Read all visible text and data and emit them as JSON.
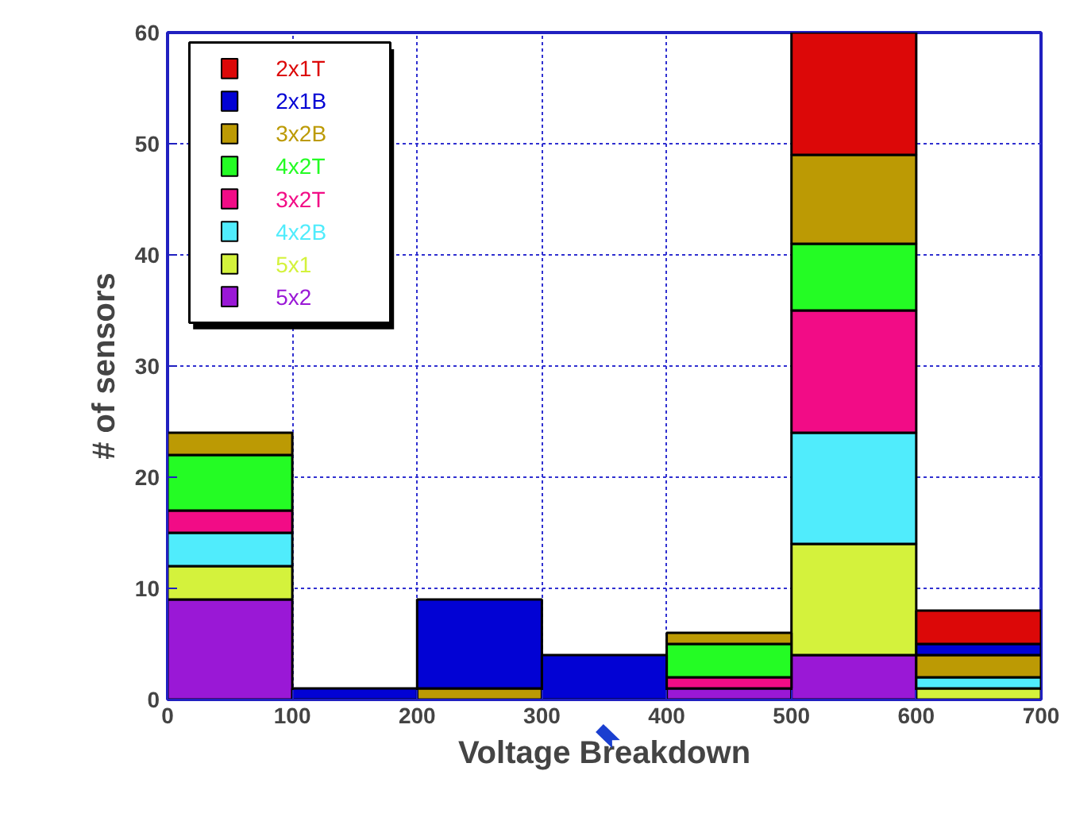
{
  "chart_data": {
    "type": "bar",
    "stacked": true,
    "xlabel": "Voltage Breakdown",
    "ylabel": "# of sensors",
    "x": [
      50,
      150,
      250,
      350,
      450,
      550,
      650
    ],
    "xlim": [
      0,
      700
    ],
    "xticks": [
      0,
      100,
      200,
      300,
      400,
      500,
      600,
      700
    ],
    "ylim": [
      0,
      60
    ],
    "yticks": [
      0,
      10,
      20,
      30,
      40,
      50,
      60
    ],
    "grid": true,
    "legend": "top left",
    "series": [
      {
        "name": "5x2",
        "color": "#9a18d6",
        "values": [
          9,
          0,
          0,
          0,
          1,
          4,
          0
        ]
      },
      {
        "name": "5x1",
        "color": "#d4f23c",
        "values": [
          3,
          0,
          0,
          0,
          0,
          10,
          1
        ]
      },
      {
        "name": "4x2B",
        "color": "#50ecfc",
        "values": [
          3,
          0,
          0,
          0,
          0,
          10,
          1
        ]
      },
      {
        "name": "3x2T",
        "color": "#f20c86",
        "values": [
          2,
          0,
          0,
          0,
          1,
          11,
          0
        ]
      },
      {
        "name": "4x2T",
        "color": "#24fc24",
        "values": [
          5,
          0,
          0,
          0,
          3,
          6,
          0
        ]
      },
      {
        "name": "3x2B",
        "color": "#bc9a04",
        "values": [
          2,
          0,
          1,
          0,
          1,
          8,
          2
        ]
      },
      {
        "name": "2x1B",
        "color": "#0202d4",
        "values": [
          0,
          1,
          8,
          4,
          0,
          0,
          1
        ]
      },
      {
        "name": "2x1T",
        "color": "#dc0808",
        "values": [
          0,
          0,
          0,
          0,
          0,
          11,
          3
        ]
      }
    ]
  }
}
